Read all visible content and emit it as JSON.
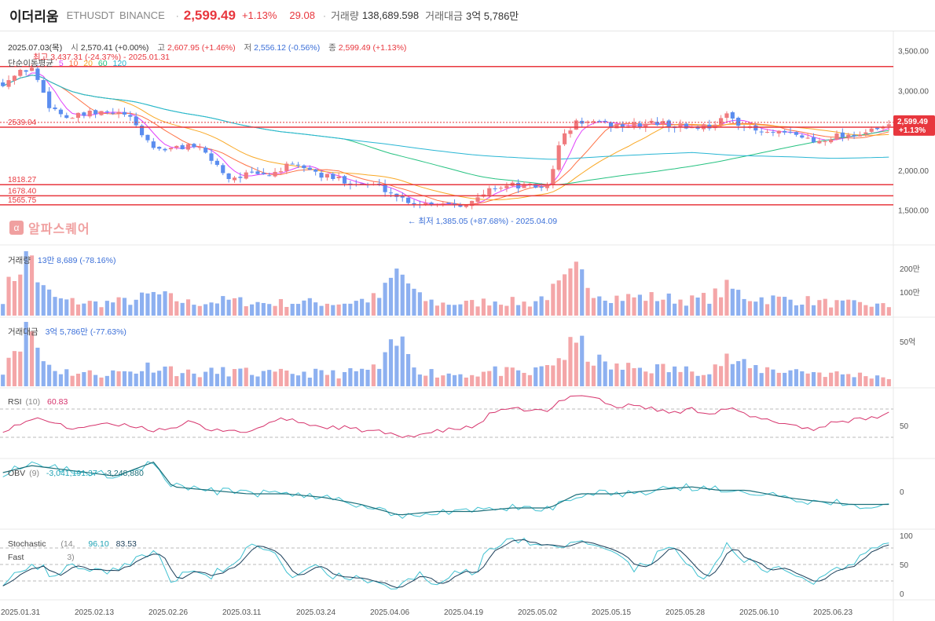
{
  "header": {
    "name": "이더리움",
    "symbol": "ETHUSDT",
    "exchange": "BINANCE",
    "price": "2,599.49",
    "change_pct": "+1.13%",
    "change": "29.08",
    "volume_label": "거래량",
    "volume": "138,689.598",
    "amount_label": "거래대금",
    "amount": "3억 5,786만"
  },
  "legend": {
    "date": "2025.07.03(목)",
    "open_label": "시",
    "open": "2,570.41 (+0.00%)",
    "high_label": "고",
    "high": "2,607.95 (+1.46%)",
    "low_label": "저",
    "low": "2,556.12 (-0.56%)",
    "close_label": "종",
    "close": "2,599.49 (+1.13%)",
    "max_note": "최고 3,437.31 (-24.37%) - 2025.01.31",
    "ma_label": "단순이동평균",
    "ma_periods": [
      "5",
      "10",
      "20",
      "60",
      "120"
    ],
    "min_note": "← 최저 1,385.05 (+87.68%) - 2025.04.09"
  },
  "colors": {
    "up": "#f07b7e",
    "down": "#5b8def",
    "vol_up": "#f4a6a8",
    "vol_down": "#8db0f0",
    "ma5": "#e040fb",
    "ma10": "#ff7043",
    "ma20": "#f9a825",
    "ma60": "#26c281",
    "ma120": "#29b6d4",
    "hline": "#e8373e"
  },
  "price_axis": [
    "3,500.00",
    "3,000.00",
    "2,500.00",
    "2,000.00",
    "1,500.00"
  ],
  "price_badge": {
    "price": "2,599.49",
    "pct": "+1.13%"
  },
  "levels": [
    {
      "value": 3300,
      "label": ""
    },
    {
      "value": 2539,
      "label": "2539.04"
    },
    {
      "value": 1818.27,
      "label": "1818.27"
    },
    {
      "value": 1678.4,
      "label": "1678.40"
    },
    {
      "value": 1565.75,
      "label": "1565.75"
    }
  ],
  "logo": {
    "glyph": "α",
    "text": "알파스퀘어"
  },
  "volume_panel": {
    "label": "거래량",
    "value": "13만 8,689 (-78.16%)",
    "axis": [
      "200만",
      "100만"
    ]
  },
  "amount_panel": {
    "label": "거래대금",
    "value": "3억 5,786만 (-77.63%)",
    "axis": [
      "50억"
    ]
  },
  "rsi": {
    "label": "RSI",
    "param": "(10)",
    "value": "60.83",
    "axis": [
      "50"
    ]
  },
  "obv": {
    "label": "OBV",
    "param": "(9)",
    "value1": "-3,041,191.37",
    "value2": "-3,248,880",
    "axis": [
      "0"
    ]
  },
  "stoch": {
    "label": "Stochastic",
    "label2": "Fast",
    "param1": "(14,",
    "param2": "3)",
    "k": "96.10",
    "d": "83.53",
    "axis": [
      "100",
      "50",
      "0"
    ]
  },
  "x_axis": [
    "2025.01.31",
    "2025.02.13",
    "2025.02.26",
    "2025.03.11",
    "2025.03.24",
    "2025.04.06",
    "2025.04.19",
    "2025.05.02",
    "2025.05.15",
    "2025.05.28",
    "2025.06.10",
    "2025.06.23"
  ],
  "chart_data": {
    "type": "candlestick",
    "y_range": [
      1300,
      3600
    ],
    "candle_count": 154,
    "close_path": [
      [
        0,
        3100
      ],
      [
        6,
        3300
      ],
      [
        10,
        2800
      ],
      [
        14,
        2650
      ],
      [
        18,
        2700
      ],
      [
        22,
        2720
      ],
      [
        26,
        2700
      ],
      [
        28,
        2560
      ],
      [
        32,
        2280
      ],
      [
        36,
        2260
      ],
      [
        40,
        2330
      ],
      [
        44,
        2150
      ],
      [
        48,
        1900
      ],
      [
        52,
        1950
      ],
      [
        56,
        1930
      ],
      [
        60,
        2040
      ],
      [
        64,
        2040
      ],
      [
        68,
        1920
      ],
      [
        72,
        1880
      ],
      [
        76,
        1820
      ],
      [
        80,
        1800
      ],
      [
        84,
        1660
      ],
      [
        88,
        1580
      ],
      [
        92,
        1600
      ],
      [
        96,
        1580
      ],
      [
        100,
        1600
      ],
      [
        104,
        1790
      ],
      [
        108,
        1810
      ],
      [
        112,
        1790
      ],
      [
        116,
        1800
      ],
      [
        118,
        2350
      ],
      [
        122,
        2620
      ],
      [
        126,
        2580
      ],
      [
        130,
        2560
      ],
      [
        134,
        2560
      ],
      [
        138,
        2600
      ],
      [
        142,
        2560
      ],
      [
        146,
        2540
      ],
      [
        150,
        2560
      ],
      [
        154,
        2690
      ],
      [
        158,
        2520
      ],
      [
        162,
        2460
      ],
      [
        166,
        2450
      ],
      [
        170,
        2420
      ],
      [
        172,
        2350
      ],
      [
        176,
        2430
      ],
      [
        180,
        2450
      ],
      [
        184,
        2480
      ],
      [
        188,
        2550
      ]
    ],
    "volume_path": [
      [
        0,
        0.3
      ],
      [
        4,
        0.9
      ],
      [
        6,
        1.0
      ],
      [
        8,
        0.45
      ],
      [
        12,
        0.25
      ],
      [
        20,
        0.2
      ],
      [
        28,
        0.25
      ],
      [
        32,
        0.35
      ],
      [
        40,
        0.2
      ],
      [
        48,
        0.25
      ],
      [
        56,
        0.2
      ],
      [
        64,
        0.22
      ],
      [
        72,
        0.2
      ],
      [
        76,
        0.25
      ],
      [
        80,
        0.3
      ],
      [
        84,
        0.75
      ],
      [
        88,
        0.3
      ],
      [
        92,
        0.2
      ],
      [
        100,
        0.2
      ],
      [
        104,
        0.25
      ],
      [
        112,
        0.2
      ],
      [
        118,
        0.45
      ],
      [
        122,
        0.7
      ],
      [
        126,
        0.4
      ],
      [
        130,
        0.3
      ],
      [
        138,
        0.3
      ],
      [
        146,
        0.25
      ],
      [
        150,
        0.3
      ],
      [
        154,
        0.45
      ],
      [
        158,
        0.3
      ],
      [
        162,
        0.28
      ],
      [
        170,
        0.25
      ],
      [
        176,
        0.2
      ],
      [
        184,
        0.18
      ],
      [
        188,
        0.15
      ]
    ],
    "rsi_path": [
      [
        0,
        40
      ],
      [
        8,
        58
      ],
      [
        14,
        42
      ],
      [
        20,
        48
      ],
      [
        28,
        46
      ],
      [
        32,
        40
      ],
      [
        36,
        44
      ],
      [
        40,
        52
      ],
      [
        44,
        38
      ],
      [
        48,
        42
      ],
      [
        52,
        36
      ],
      [
        56,
        50
      ],
      [
        60,
        56
      ],
      [
        64,
        50
      ],
      [
        68,
        44
      ],
      [
        72,
        44
      ],
      [
        76,
        40
      ],
      [
        80,
        38
      ],
      [
        84,
        30
      ],
      [
        88,
        34
      ],
      [
        92,
        38
      ],
      [
        96,
        42
      ],
      [
        100,
        44
      ],
      [
        104,
        66
      ],
      [
        110,
        70
      ],
      [
        116,
        66
      ],
      [
        118,
        80
      ],
      [
        122,
        92
      ],
      [
        126,
        86
      ],
      [
        130,
        72
      ],
      [
        134,
        76
      ],
      [
        138,
        70
      ],
      [
        142,
        64
      ],
      [
        146,
        70
      ],
      [
        150,
        64
      ],
      [
        154,
        72
      ],
      [
        158,
        60
      ],
      [
        162,
        54
      ],
      [
        166,
        50
      ],
      [
        170,
        44
      ],
      [
        172,
        40
      ],
      [
        176,
        52
      ],
      [
        180,
        54
      ],
      [
        184,
        56
      ],
      [
        188,
        64
      ]
    ],
    "obv_path": [
      [
        0,
        0.8
      ],
      [
        6,
        0.9
      ],
      [
        12,
        0.85
      ],
      [
        24,
        0.75
      ],
      [
        32,
        0.95
      ],
      [
        36,
        0.6
      ],
      [
        44,
        0.55
      ],
      [
        52,
        0.5
      ],
      [
        60,
        0.5
      ],
      [
        68,
        0.45
      ],
      [
        76,
        0.35
      ],
      [
        84,
        0.2
      ],
      [
        92,
        0.25
      ],
      [
        100,
        0.25
      ],
      [
        108,
        0.3
      ],
      [
        116,
        0.3
      ],
      [
        122,
        0.5
      ],
      [
        130,
        0.5
      ],
      [
        138,
        0.55
      ],
      [
        146,
        0.6
      ],
      [
        152,
        0.55
      ],
      [
        158,
        0.55
      ],
      [
        166,
        0.45
      ],
      [
        172,
        0.4
      ],
      [
        180,
        0.35
      ],
      [
        188,
        0.35
      ]
    ],
    "stoch_path": [
      [
        0,
        20
      ],
      [
        6,
        55
      ],
      [
        10,
        35
      ],
      [
        16,
        50
      ],
      [
        22,
        40
      ],
      [
        28,
        60
      ],
      [
        32,
        75
      ],
      [
        36,
        20
      ],
      [
        40,
        45
      ],
      [
        44,
        30
      ],
      [
        50,
        60
      ],
      [
        54,
        90
      ],
      [
        58,
        60
      ],
      [
        62,
        30
      ],
      [
        66,
        55
      ],
      [
        70,
        30
      ],
      [
        76,
        20
      ],
      [
        80,
        15
      ],
      [
        84,
        10
      ],
      [
        88,
        30
      ],
      [
        92,
        20
      ],
      [
        96,
        40
      ],
      [
        100,
        35
      ],
      [
        104,
        85
      ],
      [
        110,
        95
      ],
      [
        114,
        80
      ],
      [
        118,
        85
      ],
      [
        122,
        95
      ],
      [
        126,
        90
      ],
      [
        130,
        70
      ],
      [
        134,
        45
      ],
      [
        138,
        60
      ],
      [
        142,
        90
      ],
      [
        146,
        40
      ],
      [
        150,
        25
      ],
      [
        154,
        90
      ],
      [
        158,
        55
      ],
      [
        162,
        40
      ],
      [
        166,
        40
      ],
      [
        170,
        25
      ],
      [
        172,
        15
      ],
      [
        176,
        40
      ],
      [
        180,
        50
      ],
      [
        184,
        70
      ],
      [
        188,
        96
      ]
    ]
  }
}
